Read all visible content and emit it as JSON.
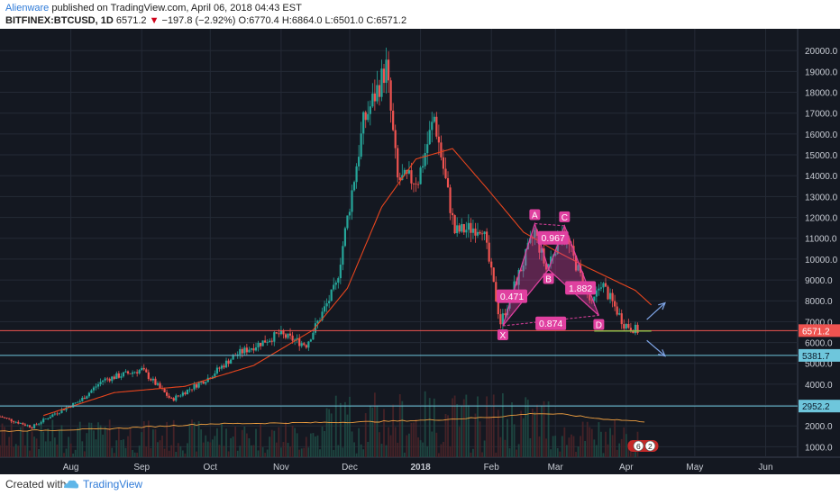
{
  "header": {
    "author": "Alienware",
    "published_text": "published on TradingView.com, April 06, 2018 04:43 EST",
    "symbol": "BITFINEX:BTCUSD, 1D",
    "last_price": "6571.2",
    "change_arrow": "▼",
    "change": "−197.8 (−2.92%)",
    "ohlc": "O:6770.4  H:6864.0  L:6501.0  C:6571.2"
  },
  "footer": {
    "created_with": "Created with",
    "brand": "TradingView"
  },
  "colors": {
    "background": "#141821",
    "grid": "#242a36",
    "up": "#26a69a",
    "down": "#ef5350",
    "ma": "#e8451e",
    "pattern": "#e040a0",
    "hline_red": "#ef5350",
    "hline_cyan": "#6ec6dc",
    "volume_ma": "#f0a040",
    "arrow": "#7fa6e8"
  },
  "chart_data": {
    "type": "candlestick",
    "symbol": "BITFINEX:BTCUSD",
    "timeframe": "1D",
    "y_range": [
      500,
      20700
    ],
    "y_ticks": [
      1000,
      2000,
      3000,
      4000,
      5000,
      6000,
      7000,
      8000,
      9000,
      10000,
      11000,
      12000,
      13000,
      14000,
      15000,
      16000,
      17000,
      18000,
      19000,
      20000
    ],
    "x_labels": [
      "Aug",
      "Sep",
      "Oct",
      "Nov",
      "Dec",
      "2018",
      "Feb",
      "Mar",
      "Apr",
      "May",
      "Jun"
    ],
    "x_label_dates": [
      "2017-08-01",
      "2017-09-01",
      "2017-10-01",
      "2017-11-01",
      "2017-12-01",
      "2018-01-01",
      "2018-02-01",
      "2018-03-01",
      "2018-04-01",
      "2018-05-01",
      "2018-06-01"
    ],
    "x_range": [
      "2017-07-01",
      "2018-06-15"
    ],
    "close_anchors": [
      [
        "2017-07-01",
        2450
      ],
      [
        "2017-07-15",
        1950
      ],
      [
        "2017-07-25",
        2600
      ],
      [
        "2017-08-05",
        3200
      ],
      [
        "2017-08-15",
        4200
      ],
      [
        "2017-09-01",
        4700
      ],
      [
        "2017-09-14",
        3250
      ],
      [
        "2017-09-30",
        4300
      ],
      [
        "2017-10-12",
        5400
      ],
      [
        "2017-10-31",
        6400
      ],
      [
        "2017-11-12",
        5900
      ],
      [
        "2017-11-25",
        8700
      ],
      [
        "2017-12-07",
        16500
      ],
      [
        "2017-12-17",
        19200
      ],
      [
        "2017-12-22",
        13800
      ],
      [
        "2017-12-31",
        13850
      ],
      [
        "2018-01-07",
        16800
      ],
      [
        "2018-01-16",
        11300
      ],
      [
        "2018-01-28",
        11600
      ],
      [
        "2018-02-05",
        6950
      ],
      [
        "2018-02-20",
        11300
      ],
      [
        "2018-02-25",
        9500
      ],
      [
        "2018-03-04",
        11450
      ],
      [
        "2018-03-17",
        7750
      ],
      [
        "2018-03-21",
        8900
      ],
      [
        "2018-03-31",
        6900
      ],
      [
        "2018-04-06",
        6571
      ]
    ],
    "moving_average_anchors": [
      [
        "2017-07-20",
        2500
      ],
      [
        "2017-08-20",
        3600
      ],
      [
        "2017-09-20",
        3900
      ],
      [
        "2017-10-20",
        4900
      ],
      [
        "2017-11-15",
        6600
      ],
      [
        "2017-11-30",
        8600
      ],
      [
        "2017-12-15",
        12500
      ],
      [
        "2017-12-30",
        14800
      ],
      [
        "2018-01-15",
        15300
      ],
      [
        "2018-01-30",
        13400
      ],
      [
        "2018-02-15",
        11300
      ],
      [
        "2018-03-01",
        10400
      ],
      [
        "2018-03-15",
        9600
      ],
      [
        "2018-04-05",
        8500
      ],
      [
        "2018-04-12",
        7800
      ]
    ],
    "volume_ma_anchors": [
      [
        "2017-07-01",
        1750
      ],
      [
        "2017-08-15",
        1850
      ],
      [
        "2017-10-01",
        2100
      ],
      [
        "2017-11-10",
        2150
      ],
      [
        "2017-12-10",
        2200
      ],
      [
        "2018-01-10",
        2300
      ],
      [
        "2018-02-05",
        2450
      ],
      [
        "2018-02-20",
        2600
      ],
      [
        "2018-03-05",
        2550
      ],
      [
        "2018-03-20",
        2350
      ],
      [
        "2018-04-10",
        2200
      ]
    ],
    "volume_axis_note": "volume bars and their average are overlaid on the bottom of the price pane",
    "current_price_label": "6571.2",
    "horizontal_lines": [
      {
        "price": 6571.2,
        "label": "6571.2",
        "color": "#ef5350"
      },
      {
        "price": 5381.7,
        "label": "5381.7",
        "color": "#6ec6dc"
      },
      {
        "price": 2952.2,
        "label": "2952.2",
        "color": "#6ec6dc"
      }
    ],
    "harmonic_pattern": {
      "points": [
        {
          "label": "X",
          "date": "2018-02-06",
          "price": 6800
        },
        {
          "label": "A",
          "date": "2018-02-20",
          "price": 11700
        },
        {
          "label": "B",
          "date": "2018-02-26",
          "price": 9500
        },
        {
          "label": "C",
          "date": "2018-03-05",
          "price": 11600
        },
        {
          "label": "D",
          "date": "2018-03-20",
          "price": 7300
        }
      ],
      "ratios": [
        {
          "label": "0.967",
          "date": "2018-02-28",
          "price": 11000
        },
        {
          "label": "0.471",
          "date": "2018-02-10",
          "price": 8200
        },
        {
          "label": "1.882",
          "date": "2018-03-12",
          "price": 8600
        },
        {
          "label": "0.874",
          "date": "2018-02-27",
          "price": 6900
        }
      ]
    },
    "support_line": {
      "from": [
        "2018-03-18",
        6550
      ],
      "to": [
        "2018-04-12",
        6550
      ]
    },
    "projection_arrows": [
      {
        "from": [
          "2018-04-10",
          7100
        ],
        "to": [
          "2018-04-18",
          7900
        ]
      },
      {
        "from": [
          "2018-04-10",
          6100
        ],
        "to": [
          "2018-04-18",
          5350
        ]
      }
    ],
    "badges": [
      "6",
      "2"
    ]
  }
}
